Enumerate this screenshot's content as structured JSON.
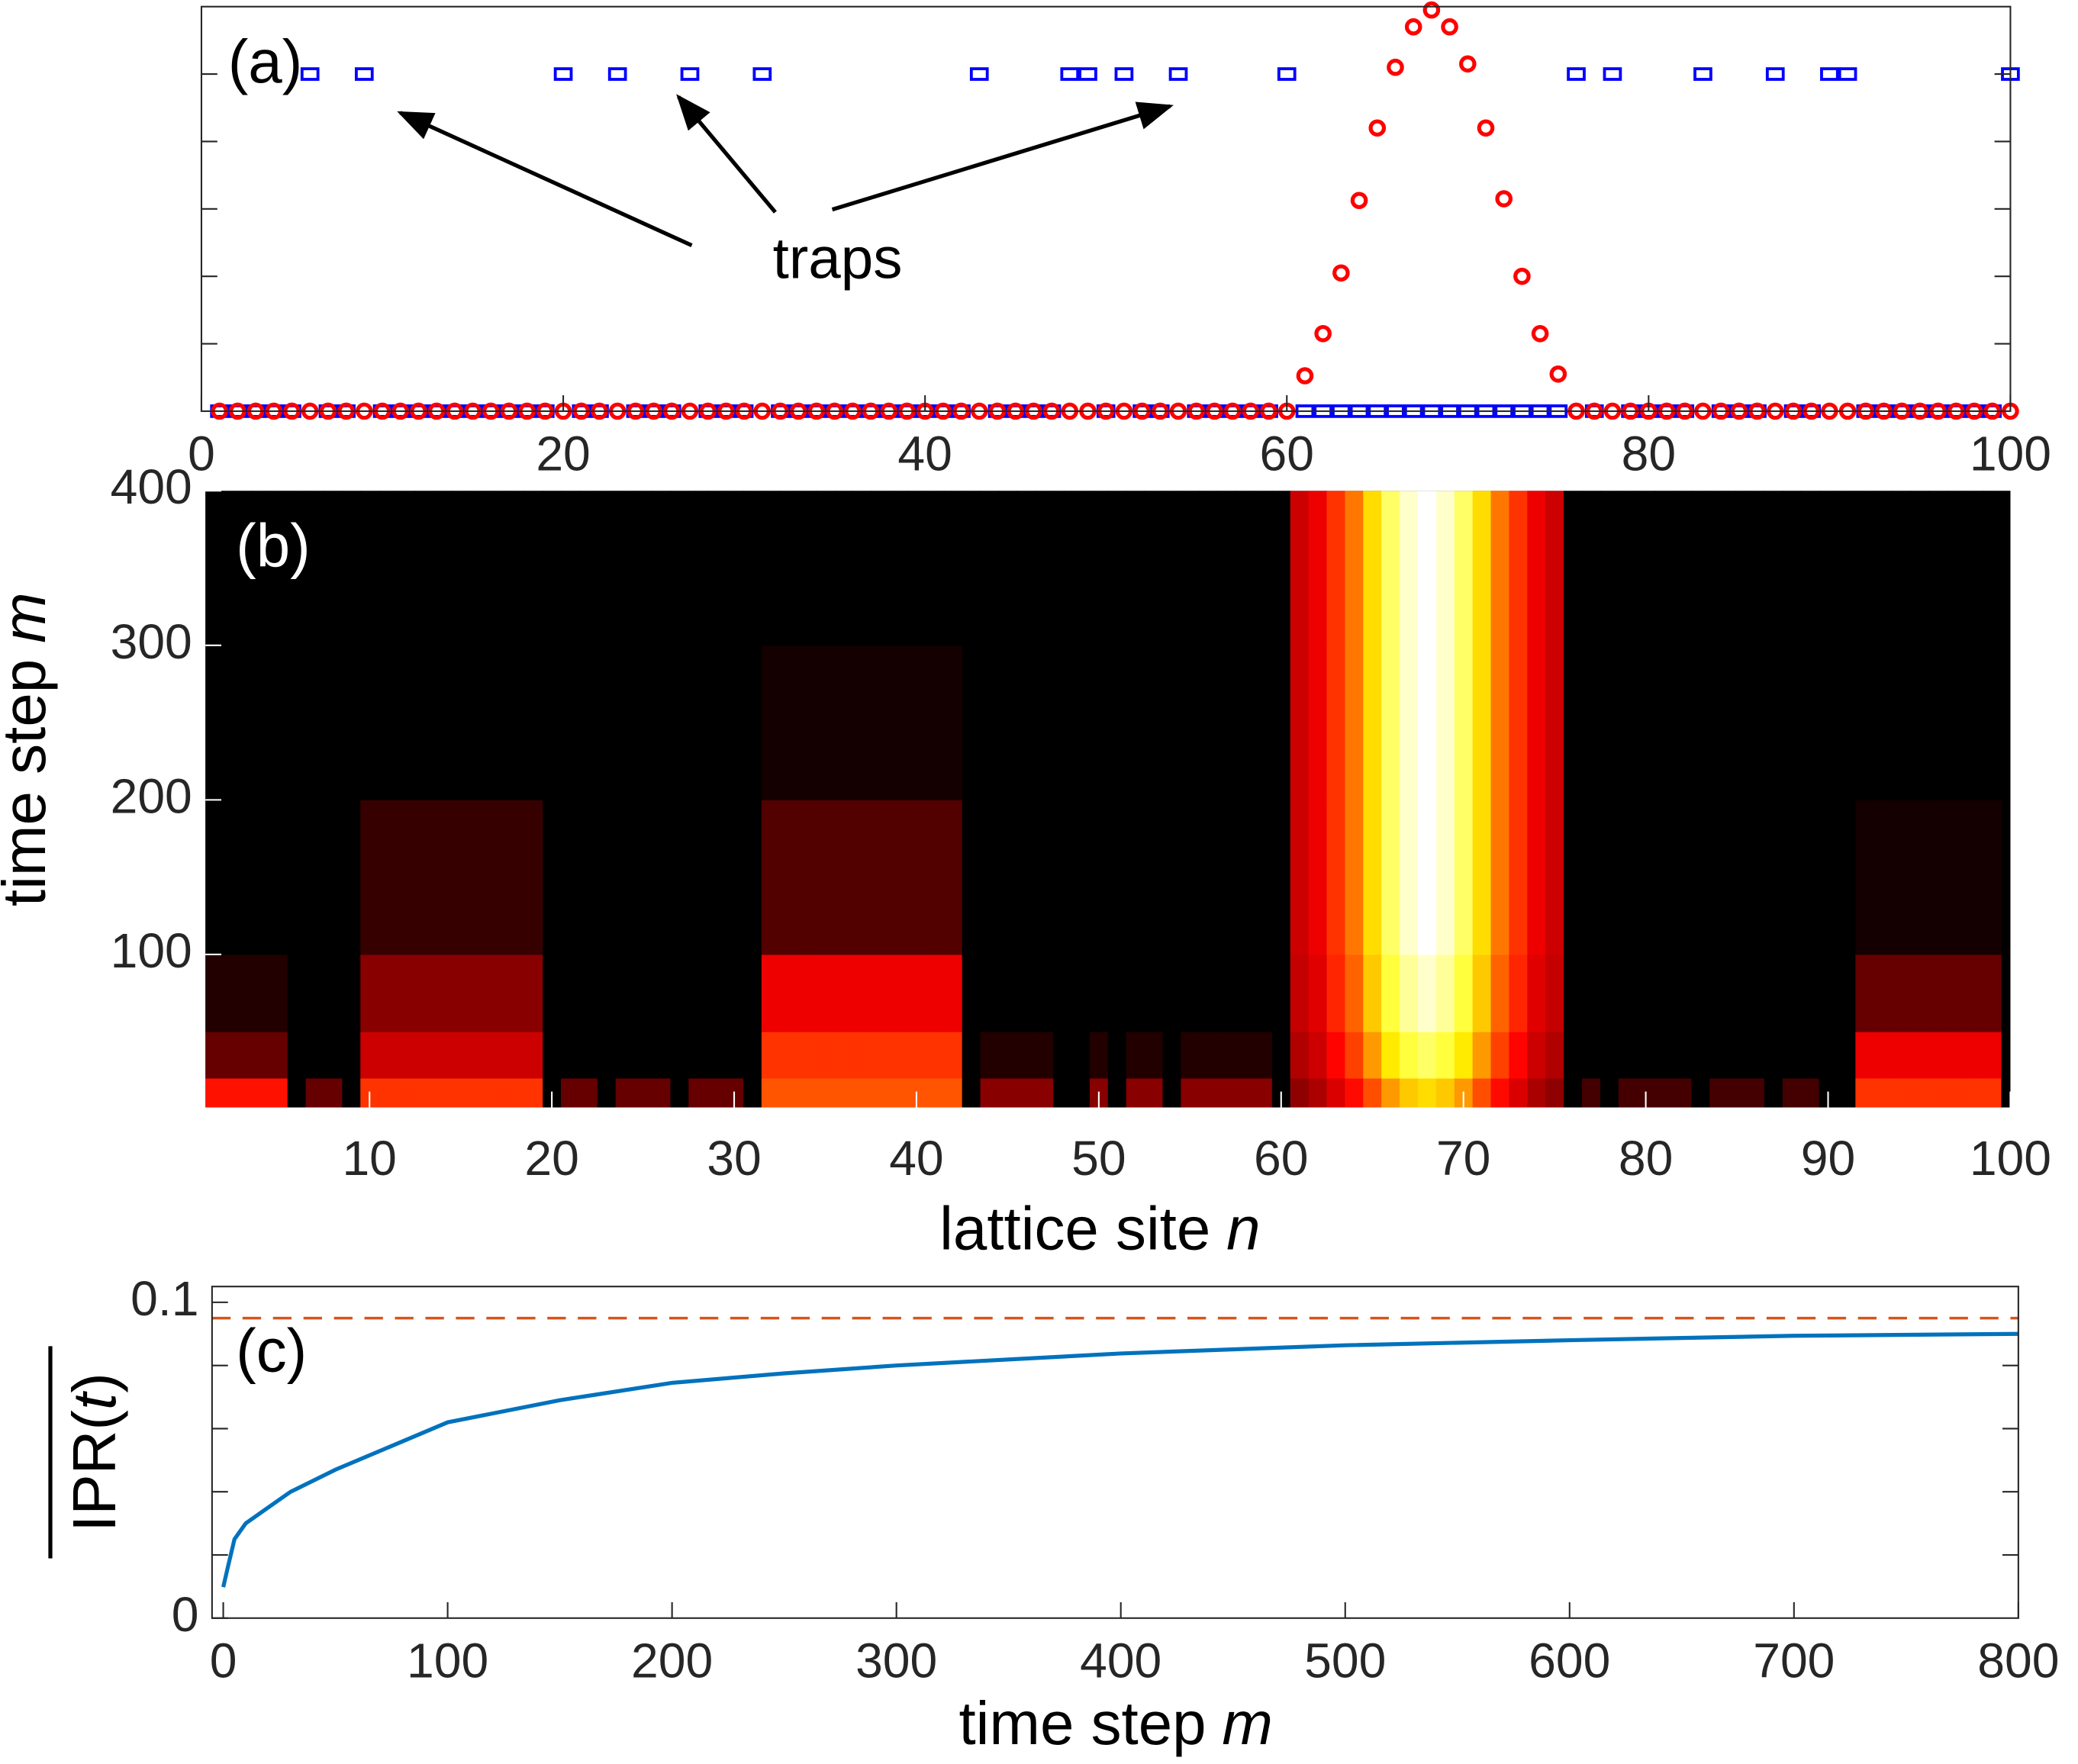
{
  "chart_data": [
    {
      "type": "scatter",
      "panel": "(a)",
      "annotation": "traps",
      "xlim": [
        0,
        100
      ],
      "xticks": [
        0,
        20,
        40,
        60,
        80,
        100
      ],
      "ylim": [
        0,
        1.2
      ],
      "yminorticks": [
        0.2,
        0.4,
        0.6,
        0.8,
        1.0
      ],
      "x": [
        1,
        2,
        3,
        4,
        5,
        6,
        7,
        8,
        9,
        10,
        11,
        12,
        13,
        14,
        15,
        16,
        17,
        18,
        19,
        20,
        21,
        22,
        23,
        24,
        25,
        26,
        27,
        28,
        29,
        30,
        31,
        32,
        33,
        34,
        35,
        36,
        37,
        38,
        39,
        40,
        41,
        42,
        43,
        44,
        45,
        46,
        47,
        48,
        49,
        50,
        51,
        52,
        53,
        54,
        55,
        56,
        57,
        58,
        59,
        60,
        61,
        62,
        63,
        64,
        65,
        66,
        67,
        68,
        69,
        70,
        71,
        72,
        73,
        74,
        75,
        76,
        77,
        78,
        79,
        80,
        81,
        82,
        83,
        84,
        85,
        86,
        87,
        88,
        89,
        90,
        91,
        92,
        93,
        94,
        95,
        96,
        97,
        98,
        99,
        100
      ],
      "series": [
        {
          "color": "#0000ff",
          "marker": "square",
          "values": [
            0,
            0,
            0,
            0,
            0,
            1,
            0,
            0,
            1,
            0,
            0,
            0,
            0,
            0,
            0,
            0,
            0,
            0,
            0,
            1,
            0,
            0,
            1,
            0,
            0,
            0,
            1,
            0,
            0,
            0,
            1,
            0,
            0,
            0,
            0,
            0,
            0,
            0,
            0,
            0,
            0,
            0,
            1,
            0,
            0,
            0,
            0,
            1,
            1,
            0,
            1,
            0,
            0,
            1,
            0,
            0,
            0,
            0,
            0,
            1,
            0,
            0,
            0,
            0,
            0,
            0,
            0,
            0,
            0,
            0,
            0,
            0,
            0,
            0,
            0,
            1,
            0,
            1,
            0,
            0,
            0,
            0,
            1,
            0,
            0,
            0,
            1,
            0,
            0,
            1,
            1,
            0,
            0,
            0,
            0,
            0,
            0,
            0,
            0,
            1
          ]
        },
        {
          "color": "#ff0000",
          "marker": "circle",
          "values": [
            0,
            0,
            0,
            0,
            0,
            0,
            0,
            0,
            0,
            0,
            0,
            0,
            0,
            0,
            0,
            0,
            0,
            0,
            0,
            0,
            0,
            0,
            0,
            0,
            0,
            0,
            0,
            0,
            0,
            0,
            0,
            0,
            0,
            0,
            0,
            0,
            0,
            0,
            0,
            0,
            0,
            0,
            0,
            0,
            0,
            0,
            0,
            0,
            0,
            0,
            0,
            0,
            0,
            0,
            0,
            0,
            0,
            0,
            0,
            0,
            0.105,
            0.23,
            0.41,
            0.625,
            0.84,
            1.02,
            1.14,
            1.19,
            1.14,
            1.03,
            0.84,
            0.63,
            0.4,
            0.23,
            0.11,
            0,
            0,
            0,
            0,
            0,
            0,
            0,
            0,
            0,
            0,
            0,
            0,
            0,
            0,
            0,
            0,
            0,
            0,
            0,
            0,
            0,
            0,
            0,
            0,
            0
          ]
        }
      ]
    },
    {
      "type": "heatmap",
      "panel": "(b)",
      "colormap": "hot",
      "xlabel": [
        "lattice site",
        "n"
      ],
      "ylabel": [
        "time step",
        "m"
      ],
      "xlim": [
        1,
        100
      ],
      "xticks": [
        10,
        20,
        30,
        40,
        50,
        60,
        70,
        80,
        90,
        100
      ],
      "ylim": [
        1,
        400
      ],
      "yticks": [
        100,
        200,
        300,
        400
      ],
      "x": [
        1,
        2,
        3,
        4,
        5,
        6,
        7,
        8,
        9,
        10,
        11,
        12,
        13,
        14,
        15,
        16,
        17,
        18,
        19,
        20,
        21,
        22,
        23,
        24,
        25,
        26,
        27,
        28,
        29,
        30,
        31,
        32,
        33,
        34,
        35,
        36,
        37,
        38,
        39,
        40,
        41,
        42,
        43,
        44,
        45,
        46,
        47,
        48,
        49,
        50,
        51,
        52,
        53,
        54,
        55,
        56,
        57,
        58,
        59,
        60,
        61,
        62,
        63,
        64,
        65,
        66,
        67,
        68,
        69,
        70,
        71,
        72,
        73,
        74,
        75,
        76,
        77,
        78,
        79,
        80,
        81,
        82,
        83,
        84,
        85,
        86,
        87,
        88,
        89,
        90,
        91,
        92,
        93,
        94,
        95,
        96,
        97,
        98,
        99,
        100
      ],
      "y_bins": [
        1,
        20,
        50,
        100,
        200,
        300,
        400
      ],
      "z": [
        [
          0.4,
          0.4,
          0.4,
          0.4,
          0.4,
          0,
          0.15,
          0.15,
          0,
          0.45,
          0.45,
          0.45,
          0.45,
          0.45,
          0.45,
          0.45,
          0.45,
          0.45,
          0.45,
          0,
          0.15,
          0.15,
          0,
          0.15,
          0.15,
          0.15,
          0,
          0.15,
          0.15,
          0.15,
          0,
          0.5,
          0.5,
          0.5,
          0.5,
          0.5,
          0.5,
          0.5,
          0.5,
          0.5,
          0.5,
          0.5,
          0,
          0.2,
          0.2,
          0.2,
          0.2,
          0,
          0,
          0.2,
          0,
          0.2,
          0.2,
          0,
          0.2,
          0.2,
          0.2,
          0.2,
          0.2,
          0,
          0.21,
          0.25,
          0.32,
          0.39,
          0.49,
          0.6,
          0.67,
          0.7,
          0.67,
          0.6,
          0.49,
          0.39,
          0.32,
          0.25,
          0.21,
          0,
          0.1,
          0,
          0.1,
          0.1,
          0.1,
          0.1,
          0,
          0.1,
          0.1,
          0.1,
          0,
          0.1,
          0.1,
          0,
          0,
          0.45,
          0.45,
          0.45,
          0.45,
          0.45,
          0.45,
          0.45,
          0.45,
          0
        ],
        [
          0.15,
          0.15,
          0.15,
          0.15,
          0.15,
          0,
          0,
          0,
          0,
          0.3,
          0.3,
          0.3,
          0.3,
          0.3,
          0.3,
          0.3,
          0.3,
          0.3,
          0.3,
          0,
          0,
          0,
          0,
          0,
          0,
          0,
          0,
          0,
          0,
          0,
          0,
          0.45,
          0.45,
          0.45,
          0.45,
          0.45,
          0.45,
          0.45,
          0.45,
          0.45,
          0.45,
          0.45,
          0,
          0.05,
          0.05,
          0.05,
          0.05,
          0,
          0,
          0.05,
          0,
          0.05,
          0.05,
          0,
          0.05,
          0.05,
          0.05,
          0.05,
          0.05,
          0,
          0.26,
          0.3,
          0.38,
          0.47,
          0.6,
          0.72,
          0.81,
          0.85,
          0.81,
          0.72,
          0.6,
          0.47,
          0.38,
          0.3,
          0.26,
          0,
          0,
          0,
          0,
          0,
          0,
          0,
          0,
          0,
          0,
          0,
          0,
          0,
          0,
          0,
          0,
          0.35,
          0.35,
          0.35,
          0.35,
          0.35,
          0.35,
          0.35,
          0.35,
          0
        ],
        [
          0.05,
          0.05,
          0.05,
          0.05,
          0.05,
          0,
          0,
          0,
          0,
          0.2,
          0.2,
          0.2,
          0.2,
          0.2,
          0.2,
          0.2,
          0.2,
          0.2,
          0.2,
          0,
          0,
          0,
          0,
          0,
          0,
          0,
          0,
          0,
          0,
          0,
          0,
          0.35,
          0.35,
          0.35,
          0.35,
          0.35,
          0.35,
          0.35,
          0.35,
          0.35,
          0.35,
          0.35,
          0,
          0,
          0,
          0,
          0,
          0,
          0,
          0,
          0,
          0,
          0,
          0,
          0,
          0,
          0,
          0,
          0,
          0,
          0.29,
          0.33,
          0.43,
          0.52,
          0.67,
          0.81,
          0.9,
          0.95,
          0.9,
          0.81,
          0.67,
          0.52,
          0.43,
          0.33,
          0.29,
          0,
          0,
          0,
          0,
          0,
          0,
          0,
          0,
          0,
          0,
          0,
          0,
          0,
          0,
          0,
          0,
          0.15,
          0.15,
          0.15,
          0.15,
          0.15,
          0.15,
          0.15,
          0.15,
          0
        ],
        [
          0,
          0,
          0,
          0,
          0,
          0,
          0,
          0,
          0,
          0.08,
          0.08,
          0.08,
          0.08,
          0.08,
          0.08,
          0.08,
          0.08,
          0.08,
          0.08,
          0,
          0,
          0,
          0,
          0,
          0,
          0,
          0,
          0,
          0,
          0,
          0,
          0.12,
          0.12,
          0.12,
          0.12,
          0.12,
          0.12,
          0.12,
          0.12,
          0.12,
          0.12,
          0.12,
          0,
          0,
          0,
          0,
          0,
          0,
          0,
          0,
          0,
          0,
          0,
          0,
          0,
          0,
          0,
          0,
          0,
          0,
          0.3,
          0.35,
          0.45,
          0.55,
          0.7,
          0.85,
          0.95,
          1,
          0.95,
          0.85,
          0.7,
          0.55,
          0.45,
          0.35,
          0.3,
          0,
          0,
          0,
          0,
          0,
          0,
          0,
          0,
          0,
          0,
          0,
          0,
          0,
          0,
          0,
          0,
          0.03,
          0.03,
          0.03,
          0.03,
          0.03,
          0.03,
          0.03,
          0.03,
          0
        ],
        [
          0,
          0,
          0,
          0,
          0,
          0,
          0,
          0,
          0,
          0,
          0,
          0,
          0,
          0,
          0,
          0,
          0,
          0,
          0,
          0,
          0,
          0,
          0,
          0,
          0,
          0,
          0,
          0,
          0,
          0,
          0,
          0.03,
          0.03,
          0.03,
          0.03,
          0.03,
          0.03,
          0.03,
          0.03,
          0.03,
          0.03,
          0.03,
          0,
          0,
          0,
          0,
          0,
          0,
          0,
          0,
          0,
          0,
          0,
          0,
          0,
          0,
          0,
          0,
          0,
          0,
          0.3,
          0.35,
          0.45,
          0.55,
          0.7,
          0.85,
          0.95,
          1,
          0.95,
          0.85,
          0.7,
          0.55,
          0.45,
          0.35,
          0.3,
          0,
          0,
          0,
          0,
          0,
          0,
          0,
          0,
          0,
          0,
          0,
          0,
          0,
          0,
          0,
          0,
          0,
          0,
          0,
          0,
          0,
          0,
          0,
          0,
          0
        ],
        [
          0,
          0,
          0,
          0,
          0,
          0,
          0,
          0,
          0,
          0,
          0,
          0,
          0,
          0,
          0,
          0,
          0,
          0,
          0,
          0,
          0,
          0,
          0,
          0,
          0,
          0,
          0,
          0,
          0,
          0,
          0,
          0,
          0,
          0,
          0,
          0,
          0,
          0,
          0,
          0,
          0,
          0,
          0,
          0,
          0,
          0,
          0,
          0,
          0,
          0,
          0,
          0,
          0,
          0,
          0,
          0,
          0,
          0,
          0,
          0,
          0.3,
          0.35,
          0.45,
          0.55,
          0.7,
          0.85,
          0.95,
          1,
          0.95,
          0.85,
          0.7,
          0.55,
          0.45,
          0.35,
          0.3,
          0,
          0,
          0,
          0,
          0,
          0,
          0,
          0,
          0,
          0,
          0,
          0,
          0,
          0,
          0,
          0,
          0,
          0,
          0,
          0,
          0,
          0,
          0,
          0,
          0
        ]
      ]
    },
    {
      "type": "line",
      "panel": "(c)",
      "xlabel": [
        "time step",
        "m"
      ],
      "ylabel": [
        "IPR(",
        "t",
        ")"
      ],
      "xlim": [
        -5,
        800
      ],
      "xticks": [
        0,
        100,
        200,
        300,
        400,
        500,
        600,
        700,
        800
      ],
      "ylim": [
        0,
        0.105
      ],
      "yticks": [
        0,
        0.1
      ],
      "yminorticks": [
        0.02,
        0.04,
        0.06,
        0.08
      ],
      "x": [
        0,
        2,
        5,
        10,
        20,
        30,
        50,
        100,
        150,
        200,
        250,
        300,
        400,
        500,
        600,
        700,
        800
      ],
      "series": [
        {
          "color": "#0072bd",
          "values": [
            0.0098,
            0.016,
            0.025,
            0.03,
            0.035,
            0.04,
            0.047,
            0.062,
            0.069,
            0.0745,
            0.0775,
            0.08,
            0.0838,
            0.0864,
            0.088,
            0.0894,
            0.09
          ]
        }
      ],
      "hline": {
        "value": 0.095,
        "color": "#d95319"
      }
    }
  ]
}
